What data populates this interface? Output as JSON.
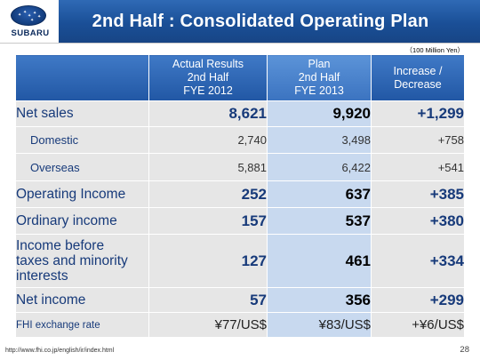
{
  "header": {
    "logo_text": "SUBARU",
    "title": "2nd Half : Consolidated Operating Plan"
  },
  "unit_note": "（100 Million Yen）",
  "table": {
    "columns": [
      {
        "line1": "",
        "line2": "",
        "line3": ""
      },
      {
        "line1": "Actual Results",
        "line2": "2nd Half",
        "line3": "FYE 2012"
      },
      {
        "line1": "Plan",
        "line2": "2nd Half",
        "line3": "FYE 2013"
      },
      {
        "line1": "Increase /",
        "line2": "Decrease",
        "line3": ""
      }
    ],
    "rows": [
      {
        "label": "Net sales",
        "actual": "8,621",
        "plan": "9,920",
        "change": "+1,299"
      },
      {
        "label": "Domestic",
        "actual": "2,740",
        "plan": "3,498",
        "change": "+758"
      },
      {
        "label": "Overseas",
        "actual": "5,881",
        "plan": "6,422",
        "change": "+541"
      },
      {
        "label": "Operating Income",
        "actual": "252",
        "plan": "637",
        "change": "+385"
      },
      {
        "label": "Ordinary income",
        "actual": "157",
        "plan": "537",
        "change": "+380"
      },
      {
        "label_lines": [
          "Income before",
          "taxes and minority",
          "interests"
        ],
        "actual": "127",
        "plan": "461",
        "change": "+334"
      },
      {
        "label": "Net income",
        "actual": "57",
        "plan": "356",
        "change": "+299"
      },
      {
        "label": "FHI exchange rate",
        "actual": "¥77/US$",
        "plan": "¥83/US$",
        "change": "+¥6/US$"
      }
    ]
  },
  "footer": {
    "url": "http://www.fhi.co.jp/english/ir/index.html",
    "page_number": "28"
  },
  "colors": {
    "title_bar": "#1a4f97",
    "header_cell": "#2157a4",
    "plan_header_cell": "#3b73c0",
    "body_cell": "#e6e6e6",
    "plan_body_cell": "#c8d9ef",
    "label_text": "#173a7a"
  }
}
